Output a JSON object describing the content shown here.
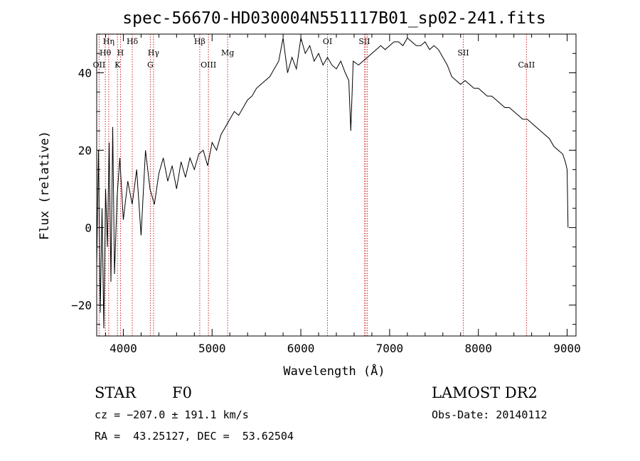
{
  "chart_data": {
    "type": "line",
    "title": "spec-56670-HD030004N551117B01_sp02-241.fits",
    "xlabel": "Wavelength (Å)",
    "ylabel": "Flux (relative)",
    "xlim": [
      3700,
      9100
    ],
    "ylim": [
      -28,
      50
    ],
    "x_ticks": [
      4000,
      5000,
      6000,
      7000,
      8000,
      9000
    ],
    "y_ticks": [
      -20,
      0,
      20,
      40
    ],
    "grid": false,
    "series": [
      {
        "x": [
          3700,
          3720,
          3740,
          3760,
          3780,
          3800,
          3820,
          3840,
          3860,
          3880,
          3900,
          3930,
          3960,
          4000,
          4050,
          4100,
          4150,
          4200,
          4250,
          4300,
          4350,
          4400,
          4450,
          4500,
          4550,
          4600,
          4650,
          4700,
          4750,
          4800,
          4850,
          4900,
          4950,
          5000,
          5050,
          5100,
          5150,
          5200,
          5250,
          5300,
          5350,
          5400,
          5450,
          5500,
          5550,
          5600,
          5650,
          5700,
          5750,
          5800,
          5850,
          5900,
          5950,
          6000,
          6050,
          6100,
          6150,
          6200,
          6250,
          6300,
          6350,
          6400,
          6450,
          6500,
          6540,
          6563,
          6590,
          6650,
          6700,
          6750,
          6800,
          6850,
          6900,
          6950,
          7000,
          7050,
          7100,
          7150,
          7200,
          7250,
          7300,
          7350,
          7400,
          7450,
          7500,
          7550,
          7600,
          7650,
          7700,
          7750,
          7800,
          7850,
          7900,
          7950,
          8000,
          8050,
          8100,
          8150,
          8200,
          8250,
          8300,
          8350,
          8400,
          8450,
          8500,
          8550,
          8600,
          8650,
          8700,
          8750,
          8800,
          8850,
          8900,
          8950,
          8980,
          9000,
          9010
        ],
        "y": [
          -10,
          20,
          -22,
          5,
          -26,
          10,
          -5,
          22,
          -14,
          26,
          -12,
          8,
          18,
          2,
          12,
          6,
          15,
          -2,
          20,
          10,
          6,
          14,
          18,
          12,
          16,
          10,
          17,
          13,
          18,
          15,
          19,
          20,
          16,
          22,
          20,
          24,
          26,
          28,
          30,
          29,
          31,
          33,
          34,
          36,
          37,
          38,
          39,
          41,
          43,
          49,
          40,
          44,
          41,
          49,
          45,
          47,
          43,
          45,
          42,
          44,
          42,
          41,
          43,
          40,
          38,
          25,
          43,
          42,
          43,
          44,
          45,
          46,
          47,
          46,
          47,
          48,
          48,
          47,
          49,
          48,
          47,
          47,
          48,
          46,
          47,
          46,
          44,
          42,
          39,
          38,
          37,
          38,
          37,
          36,
          36,
          35,
          34,
          34,
          33,
          32,
          31,
          31,
          30,
          29,
          28,
          28,
          27,
          26,
          25,
          24,
          23,
          21,
          20,
          19,
          17,
          15,
          0
        ]
      }
    ],
    "line_marks": [
      {
        "x": 3727,
        "label": "OII",
        "row": 3
      },
      {
        "x": 3797,
        "label": "Hθ",
        "row": 2
      },
      {
        "x": 3835,
        "label": "Hη",
        "row": 1
      },
      {
        "x": 3934,
        "label": "K",
        "row": 3
      },
      {
        "x": 3968,
        "label": "H",
        "row": 2
      },
      {
        "x": 4101,
        "label": "Hδ",
        "row": 1
      },
      {
        "x": 4304,
        "label": "G",
        "row": 3
      },
      {
        "x": 4340,
        "label": "Hγ",
        "row": 2
      },
      {
        "x": 4861,
        "label": "Hβ",
        "row": 1
      },
      {
        "x": 4959,
        "label": "OIII",
        "row": 3
      },
      {
        "x": 5175,
        "label": "Mg",
        "row": 2
      },
      {
        "x": 6300,
        "label": "OI",
        "row": 1
      },
      {
        "x": 6716,
        "label": "SII",
        "row": 1
      },
      {
        "x": 6731,
        "label": "",
        "row": 1
      },
      {
        "x": 6750,
        "label": "",
        "row": 1
      },
      {
        "x": 7830,
        "label": "SII",
        "row": 2
      },
      {
        "x": 8542,
        "label": "CaII",
        "row": 3
      }
    ]
  },
  "info": {
    "object_type": "STAR",
    "subclass": "F0",
    "survey": "LAMOST DR2",
    "redshift_line": "cz = −207.0 ± 191.1 km/s",
    "obs_date": "Obs-Date: 20140112",
    "coords": "RA =  43.25127, DEC =  53.62504"
  },
  "colors": {
    "line_marks": "#cc2222",
    "spectrum": "#000000",
    "axes": "#000000"
  }
}
